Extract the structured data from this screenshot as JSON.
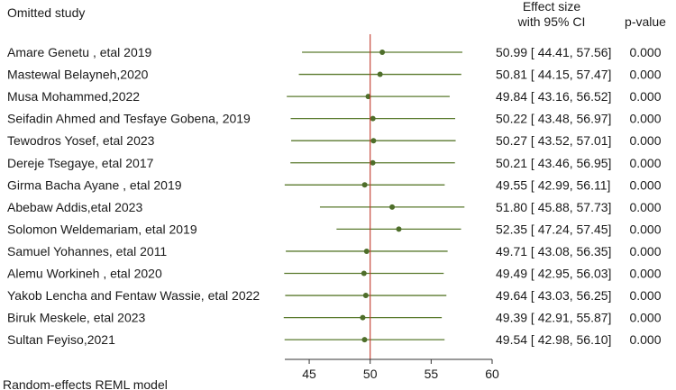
{
  "chart_data": {
    "type": "forest",
    "title": "",
    "headers": {
      "study": "Omitted study",
      "effect_line1": "Effect size",
      "effect_line2": "with 95% CI",
      "pvalue": "p-value"
    },
    "xlim": [
      43,
      60
    ],
    "xticks": [
      "45",
      "50",
      "55",
      "60"
    ],
    "reference_line": 50.0,
    "footnote": "Random-effects REML model",
    "colors": {
      "ci": "#5a7a2e",
      "point": "#4e6e2a",
      "reference": "#c0392b",
      "axis": "#333333"
    },
    "studies": [
      {
        "name": "Amare Genetu , etal 2019",
        "estimate": 50.99,
        "lower": 44.41,
        "upper": 57.56,
        "ci_text": "50.99 [ 44.41, 57.56]",
        "p": "0.000"
      },
      {
        "name": "Mastewal Belayneh,2020",
        "estimate": 50.81,
        "lower": 44.15,
        "upper": 57.47,
        "ci_text": "50.81 [ 44.15, 57.47]",
        "p": "0.000"
      },
      {
        "name": "Musa Mohammed,2022",
        "estimate": 49.84,
        "lower": 43.16,
        "upper": 56.52,
        "ci_text": "49.84 [ 43.16, 56.52]",
        "p": "0.000"
      },
      {
        "name": "Seifadin Ahmed and Tesfaye Gobena, 2019",
        "estimate": 50.22,
        "lower": 43.48,
        "upper": 56.97,
        "ci_text": "50.22 [ 43.48, 56.97]",
        "p": "0.000"
      },
      {
        "name": "Tewodros Yosef, etal 2023",
        "estimate": 50.27,
        "lower": 43.52,
        "upper": 57.01,
        "ci_text": "50.27 [ 43.52, 57.01]",
        "p": "0.000"
      },
      {
        "name": "Dereje Tsegaye, etal 2017",
        "estimate": 50.21,
        "lower": 43.46,
        "upper": 56.95,
        "ci_text": "50.21 [ 43.46, 56.95]",
        "p": "0.000"
      },
      {
        "name": "Girma Bacha Ayane , etal 2019",
        "estimate": 49.55,
        "lower": 42.99,
        "upper": 56.11,
        "ci_text": "49.55 [ 42.99, 56.11]",
        "p": "0.000"
      },
      {
        "name": "Abebaw Addis,etal 2023",
        "estimate": 51.8,
        "lower": 45.88,
        "upper": 57.73,
        "ci_text": "51.80 [ 45.88, 57.73]",
        "p": "0.000"
      },
      {
        "name": "Solomon Weldemariam, etal 2019",
        "estimate": 52.35,
        "lower": 47.24,
        "upper": 57.45,
        "ci_text": "52.35 [ 47.24, 57.45]",
        "p": "0.000"
      },
      {
        "name": "Samuel Yohannes, etal 2011",
        "estimate": 49.71,
        "lower": 43.08,
        "upper": 56.35,
        "ci_text": "49.71 [ 43.08, 56.35]",
        "p": "0.000"
      },
      {
        "name": "Alemu Workineh , etal 2020",
        "estimate": 49.49,
        "lower": 42.95,
        "upper": 56.03,
        "ci_text": "49.49 [ 42.95, 56.03]",
        "p": "0.000"
      },
      {
        "name": "Yakob Lencha and Fentaw Wassie, etal 2022",
        "estimate": 49.64,
        "lower": 43.03,
        "upper": 56.25,
        "ci_text": "49.64 [ 43.03, 56.25]",
        "p": "0.000"
      },
      {
        "name": "Biruk Meskele, etal 2023",
        "estimate": 49.39,
        "lower": 42.91,
        "upper": 55.87,
        "ci_text": "49.39 [ 42.91, 55.87]",
        "p": "0.000"
      },
      {
        "name": "Sultan Feyiso,2021",
        "estimate": 49.54,
        "lower": 42.98,
        "upper": 56.1,
        "ci_text": "49.54 [ 42.98, 56.10]",
        "p": "0.000"
      }
    ]
  }
}
